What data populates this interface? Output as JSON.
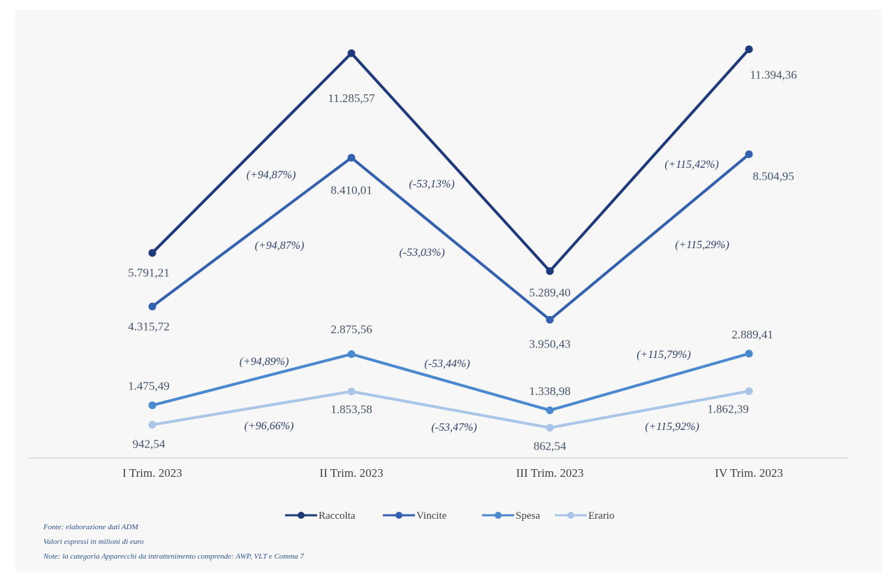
{
  "chart_data": {
    "type": "line",
    "categories": [
      "I Trim. 2023",
      "II Trim. 2023",
      "III Trim. 2023",
      "IV Trim. 2023"
    ],
    "series": [
      {
        "name": "Raccolta",
        "color": "#1f3a7a",
        "values": [
          5791.21,
          11285.57,
          5289.4,
          11394.36
        ],
        "labels": [
          "5.791,21",
          "11.285,57",
          "5.289,40",
          "11.394,36"
        ],
        "changes": [
          "(+94,87%)",
          "(-53,13%)",
          "(+115,42%)"
        ]
      },
      {
        "name": "Vincite",
        "color": "#3460b0",
        "values": [
          4315.72,
          8410.01,
          3950.43,
          8504.95
        ],
        "labels": [
          "4.315,72",
          "8.410,01",
          "3.950,43",
          "8.504,95"
        ],
        "changes": [
          "(+94,87%)",
          "(-53,03%)",
          "(+115,29%)"
        ]
      },
      {
        "name": "Spesa",
        "color": "#4a88d0",
        "values": [
          1475.49,
          2875.56,
          1338.98,
          2889.41
        ],
        "labels": [
          "1.475,49",
          "2.875,56",
          "1.338,98",
          "2.889,41"
        ],
        "changes": [
          "(+94,89%)",
          "(-53,44%)",
          "(+115,79%)"
        ]
      },
      {
        "name": "Erario",
        "color": "#a9c6e8",
        "values": [
          942.54,
          1853.58,
          862.54,
          1862.39
        ],
        "labels": [
          "942,54",
          "1.853,58",
          "862,54",
          "1.862,39"
        ],
        "changes": [
          "(+96,66%)",
          "(-53,47%)",
          "(+115,92%)"
        ]
      }
    ],
    "legend_position": "bottom",
    "grid": false
  },
  "notes": [
    "Fonte: elaborazione dati ADM",
    "Valori espressi in milioni di euro",
    "Note: la categoria Apparecchi da intrattenimento comprende: AWP, VLT e Comma 7"
  ]
}
